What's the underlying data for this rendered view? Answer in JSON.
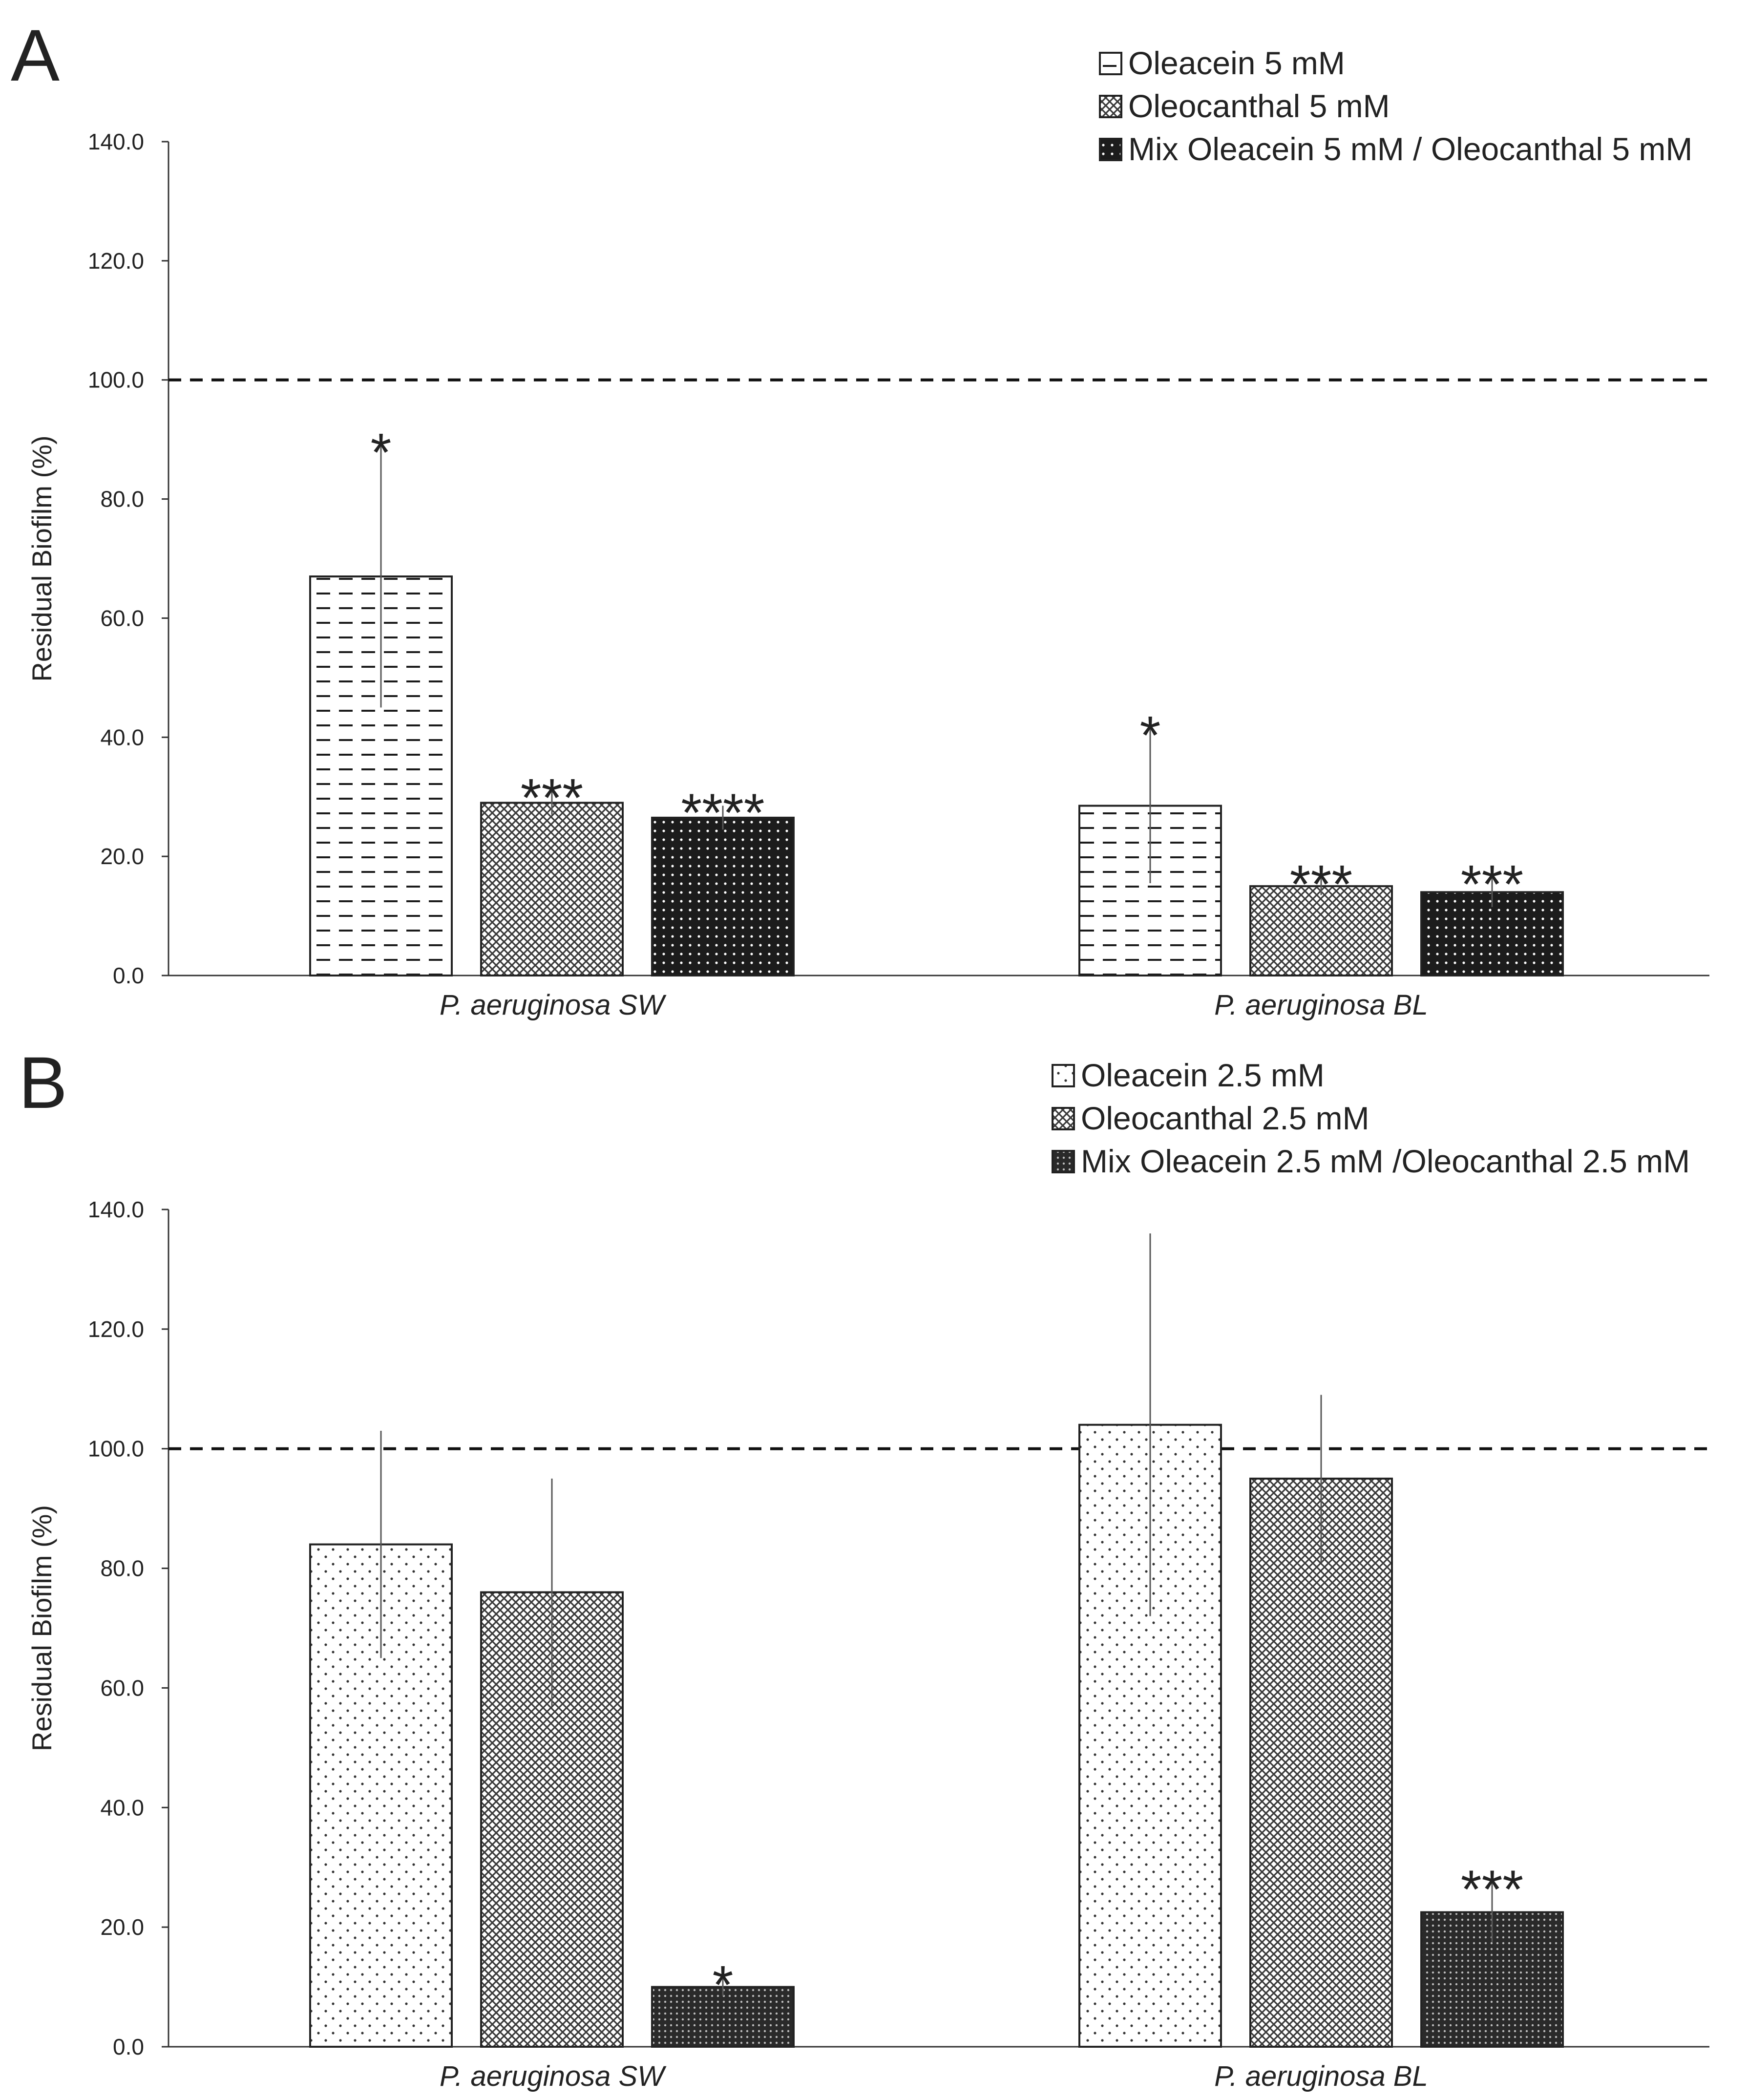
{
  "colors": {
    "axis": "#333333",
    "bar_edge": "#222222",
    "error_bar": "#555555",
    "dark_fill": "#1c1c1c",
    "mid_fill": "#6a6a6a",
    "light_fill": "#ffffff"
  },
  "chart_data": [
    {
      "type": "bar",
      "panel_label": "A",
      "categories": [
        "P. aeruginosa SW",
        "P. aeruginosa BL"
      ],
      "ylabel": "Residual Biofilm (%)",
      "xlabel": "",
      "ylim": [
        0,
        140
      ],
      "yticks": [
        "0.0",
        "20.0",
        "40.0",
        "60.0",
        "80.0",
        "100.0",
        "120.0",
        "140.0"
      ],
      "reference_line": 100,
      "legend_position": "top-right",
      "series": [
        {
          "name": "Oleacein 5 mM",
          "pattern": "dash",
          "values": [
            67,
            28.5
          ],
          "errors": [
            22,
            13
          ],
          "significance": [
            "*",
            "*"
          ]
        },
        {
          "name": "Oleocanthal 5 mM",
          "pattern": "crosshatch",
          "values": [
            29,
            15
          ],
          "errors": [
            2,
            1.5
          ],
          "significance": [
            "***",
            "***"
          ]
        },
        {
          "name": "Mix Oleacein 5 mM / Oleocanthal 5 mM",
          "pattern": "dark-dots",
          "values": [
            26.5,
            14
          ],
          "errors": [
            2,
            2.5
          ],
          "significance": [
            "****",
            "***"
          ]
        }
      ]
    },
    {
      "type": "bar",
      "panel_label": "B",
      "categories": [
        "P. aeruginosa SW",
        "P. aeruginosa BL"
      ],
      "ylabel": "Residual Biofilm (%)",
      "xlabel": "",
      "ylim": [
        0,
        140
      ],
      "yticks": [
        "0.0",
        "20.0",
        "40.0",
        "60.0",
        "80.0",
        "100.0",
        "120.0",
        "140.0"
      ],
      "reference_line": 100,
      "legend_position": "top-right",
      "series": [
        {
          "name": "Oleacein 2.5 mM",
          "pattern": "sparse-dots",
          "values": [
            84,
            104
          ],
          "errors": [
            19,
            32
          ],
          "significance": [
            "",
            ""
          ]
        },
        {
          "name": "Oleocanthal 2.5 mM",
          "pattern": "crosshatch",
          "values": [
            76,
            95
          ],
          "errors": [
            19,
            14
          ],
          "significance": [
            "",
            ""
          ]
        },
        {
          "name": "Mix Oleacein 2.5 mM /Oleocanthal 2.5 mM",
          "pattern": "dark-dense",
          "values": [
            10,
            22.5
          ],
          "errors": [
            1.5,
            5
          ],
          "significance": [
            "*",
            "***"
          ]
        }
      ]
    }
  ]
}
